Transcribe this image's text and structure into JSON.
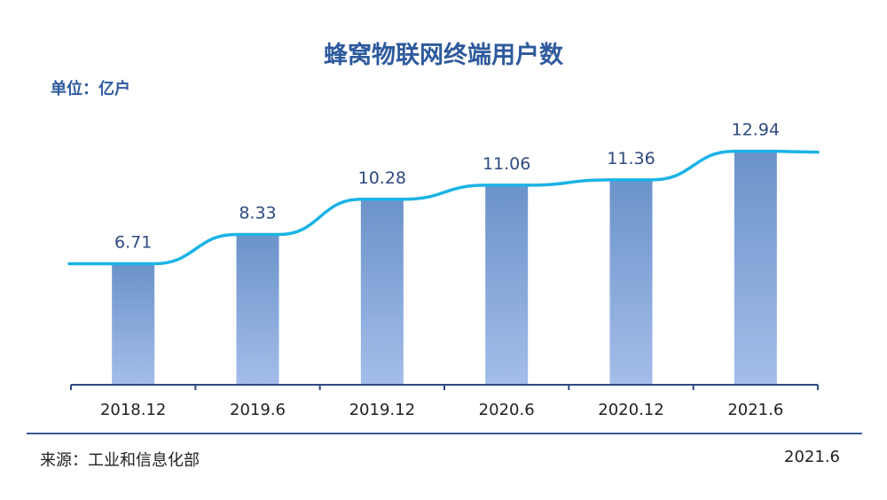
{
  "chart_data": {
    "type": "bar",
    "title": "蜂窝物联网终端用户数",
    "unit": "单位：亿户",
    "categories": [
      "2018.12",
      "2019.6",
      "2019.12",
      "2020.6",
      "2020.12",
      "2021.6"
    ],
    "values": [
      6.71,
      8.33,
      10.28,
      11.06,
      11.36,
      12.94
    ],
    "value_labels": [
      "6.71",
      "8.33",
      "10.28",
      "11.06",
      "11.36",
      "12.94"
    ],
    "ylim": [
      0,
      15
    ],
    "grid": false,
    "legend": "none",
    "overlay_line": true,
    "colors": {
      "bar_top": "#6b93c9",
      "bar_bottom": "#a4bdea",
      "line": "#1ab3e6",
      "axis": "#2e4a80",
      "label": "#2e4a80"
    }
  },
  "footer": {
    "source": "来源：工业和信息化部",
    "date": "2021.6"
  }
}
